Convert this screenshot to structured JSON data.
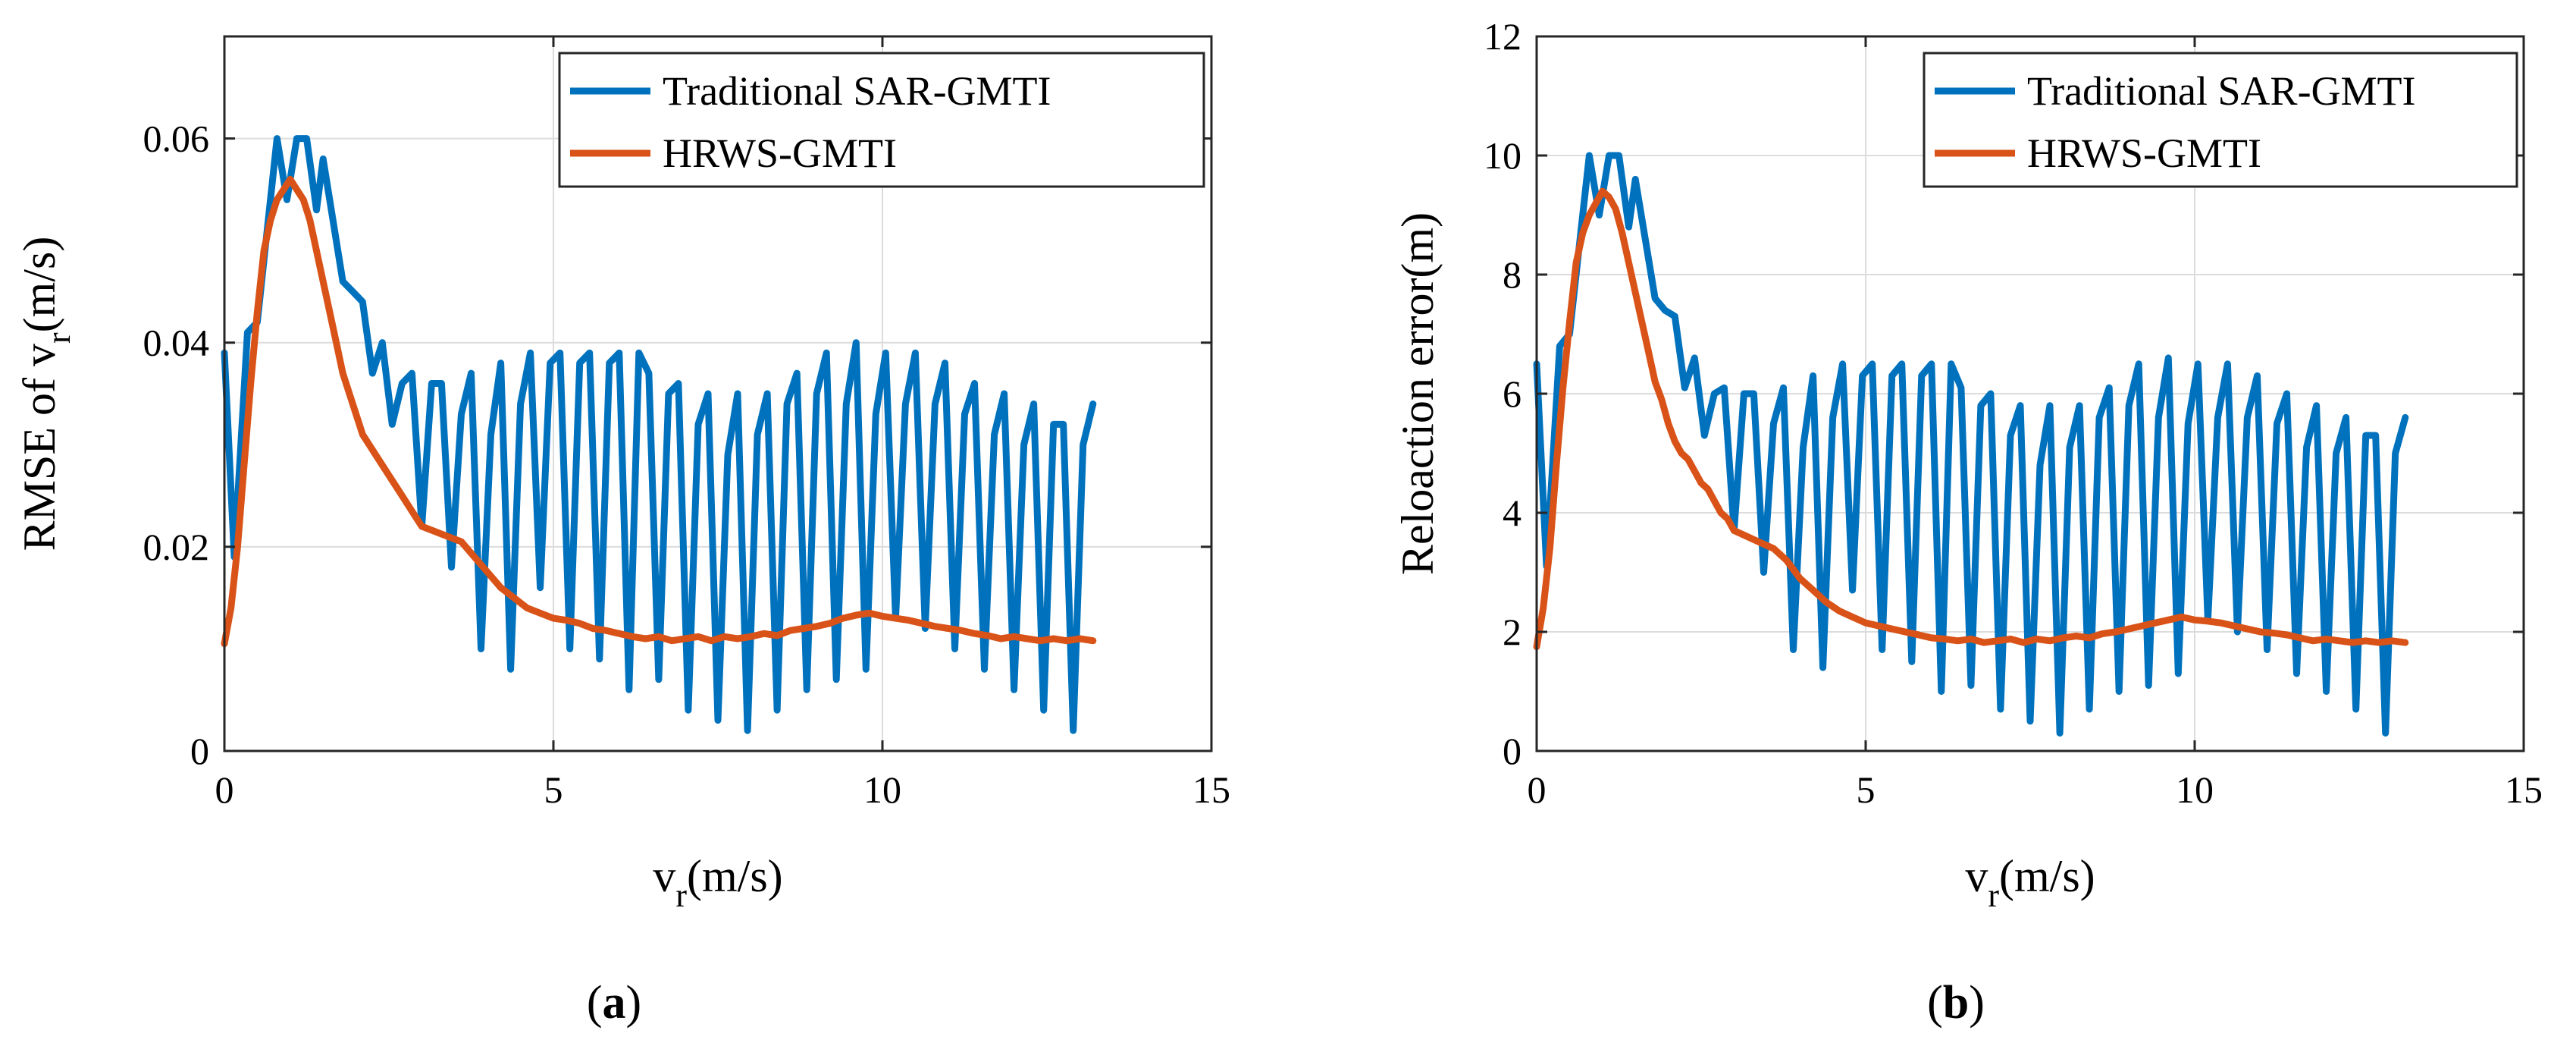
{
  "chart_data": [
    {
      "type": "line",
      "panel_label": "a",
      "ylabel_main": "RMSE of v",
      "ylabel_sub": "r",
      "ylabel_tail": "(m/s)",
      "xlabel_main": "v",
      "xlabel_sub": "r",
      "xlabel_tail": "(m/s)",
      "xlim": [
        0,
        15
      ],
      "ylim": [
        0,
        0.07
      ],
      "xticks": [
        0,
        5,
        10,
        15
      ],
      "xtick_labels": [
        "0",
        "5",
        "10",
        "15"
      ],
      "yticks": [
        0,
        0.02,
        0.04,
        0.06
      ],
      "ytick_labels": [
        "0",
        "0.02",
        "0.04",
        "0.06"
      ],
      "grid": true,
      "legend_position": "top-right",
      "series": [
        {
          "name": "Traditional SAR-GMTI",
          "color": "#0072BD",
          "x": [
            0,
            0.15,
            0.35,
            0.5,
            0.65,
            0.8,
            0.95,
            1.1,
            1.25,
            1.4,
            1.5,
            1.65,
            1.8,
            1.95,
            2.1,
            2.25,
            2.4,
            2.55,
            2.7,
            2.85,
            3.0,
            3.15,
            3.3,
            3.45,
            3.6,
            3.75,
            3.9,
            4.05,
            4.2,
            4.35,
            4.5,
            4.65,
            4.8,
            4.95,
            5.1,
            5.25,
            5.4,
            5.55,
            5.7,
            5.85,
            6.0,
            6.15,
            6.3,
            6.45,
            6.6,
            6.75,
            6.9,
            7.05,
            7.2,
            7.35,
            7.5,
            7.65,
            7.8,
            7.95,
            8.1,
            8.25,
            8.4,
            8.55,
            8.7,
            8.85,
            9.0,
            9.15,
            9.3,
            9.45,
            9.6,
            9.75,
            9.9,
            10.05,
            10.2,
            10.35,
            10.5,
            10.65,
            10.8,
            10.95,
            11.1,
            11.25,
            11.4,
            11.55,
            11.7,
            11.85,
            12.0,
            12.15,
            12.3,
            12.45,
            12.6,
            12.75,
            12.9,
            13.05,
            13.2
          ],
          "values": [
            0.039,
            0.019,
            0.041,
            0.042,
            0.051,
            0.06,
            0.054,
            0.06,
            0.06,
            0.053,
            0.058,
            0.052,
            0.046,
            0.045,
            0.044,
            0.037,
            0.04,
            0.032,
            0.036,
            0.037,
            0.022,
            0.036,
            0.036,
            0.018,
            0.033,
            0.037,
            0.01,
            0.031,
            0.038,
            0.008,
            0.034,
            0.039,
            0.016,
            0.038,
            0.039,
            0.01,
            0.038,
            0.039,
            0.009,
            0.038,
            0.039,
            0.006,
            0.039,
            0.037,
            0.007,
            0.035,
            0.036,
            0.004,
            0.032,
            0.035,
            0.003,
            0.029,
            0.035,
            0.002,
            0.031,
            0.035,
            0.004,
            0.034,
            0.037,
            0.006,
            0.035,
            0.039,
            0.007,
            0.034,
            0.04,
            0.008,
            0.033,
            0.039,
            0.013,
            0.034,
            0.039,
            0.012,
            0.034,
            0.038,
            0.01,
            0.033,
            0.036,
            0.008,
            0.031,
            0.035,
            0.006,
            0.03,
            0.034,
            0.004,
            0.032,
            0.032,
            0.002,
            0.03,
            0.034
          ]
        },
        {
          "name": "HRWS-GMTI",
          "color": "#D95319",
          "x": [
            0,
            0.1,
            0.2,
            0.3,
            0.4,
            0.5,
            0.6,
            0.7,
            0.8,
            0.9,
            1.0,
            1.1,
            1.2,
            1.3,
            1.4,
            1.5,
            1.6,
            1.7,
            1.8,
            1.9,
            2.0,
            2.1,
            2.2,
            2.3,
            2.4,
            2.5,
            2.6,
            2.7,
            2.8,
            2.9,
            3.0,
            3.2,
            3.4,
            3.6,
            3.8,
            4.0,
            4.2,
            4.4,
            4.6,
            4.8,
            5.0,
            5.2,
            5.4,
            5.6,
            5.8,
            6.0,
            6.2,
            6.4,
            6.6,
            6.8,
            7.0,
            7.2,
            7.4,
            7.6,
            7.8,
            8.0,
            8.2,
            8.4,
            8.6,
            8.8,
            9.0,
            9.2,
            9.4,
            9.6,
            9.8,
            10.0,
            10.2,
            10.4,
            10.6,
            10.8,
            11.0,
            11.2,
            11.4,
            11.6,
            11.8,
            12.0,
            12.2,
            12.4,
            12.6,
            12.8,
            13.0,
            13.2
          ],
          "values": [
            0.0105,
            0.014,
            0.02,
            0.028,
            0.036,
            0.043,
            0.049,
            0.052,
            0.054,
            0.055,
            0.056,
            0.055,
            0.054,
            0.052,
            0.049,
            0.046,
            0.043,
            0.04,
            0.037,
            0.035,
            0.033,
            0.031,
            0.03,
            0.029,
            0.028,
            0.027,
            0.026,
            0.025,
            0.024,
            0.023,
            0.022,
            0.0215,
            0.021,
            0.0205,
            0.019,
            0.0175,
            0.016,
            0.015,
            0.014,
            0.0135,
            0.013,
            0.0128,
            0.0125,
            0.012,
            0.0118,
            0.0115,
            0.0112,
            0.011,
            0.0112,
            0.0108,
            0.011,
            0.0112,
            0.0108,
            0.0112,
            0.011,
            0.0112,
            0.0115,
            0.0113,
            0.0118,
            0.012,
            0.0122,
            0.0125,
            0.013,
            0.0133,
            0.0135,
            0.0132,
            0.013,
            0.0128,
            0.0125,
            0.0122,
            0.012,
            0.0118,
            0.0115,
            0.0113,
            0.011,
            0.0112,
            0.011,
            0.0108,
            0.011,
            0.0108,
            0.011,
            0.0108
          ]
        }
      ]
    },
    {
      "type": "line",
      "panel_label": "b",
      "ylabel_main": "Reloaction error(m)",
      "xlabel_main": "v",
      "xlabel_sub": "r",
      "xlabel_tail": "(m/s)",
      "xlim": [
        0,
        15
      ],
      "ylim": [
        0,
        12
      ],
      "xticks": [
        0,
        5,
        10,
        15
      ],
      "xtick_labels": [
        "0",
        "5",
        "10",
        "15"
      ],
      "yticks": [
        0,
        2,
        4,
        6,
        8,
        10,
        12
      ],
      "ytick_labels": [
        "0",
        "2",
        "4",
        "6",
        "8",
        "10",
        "12"
      ],
      "grid": true,
      "legend_position": "top-right",
      "series": [
        {
          "name": "Traditional SAR-GMTI",
          "color": "#0072BD",
          "x": [
            0,
            0.15,
            0.35,
            0.5,
            0.65,
            0.8,
            0.95,
            1.1,
            1.25,
            1.4,
            1.5,
            1.65,
            1.8,
            1.95,
            2.1,
            2.25,
            2.4,
            2.55,
            2.7,
            2.85,
            3.0,
            3.15,
            3.3,
            3.45,
            3.6,
            3.75,
            3.9,
            4.05,
            4.2,
            4.35,
            4.5,
            4.65,
            4.8,
            4.95,
            5.1,
            5.25,
            5.4,
            5.55,
            5.7,
            5.85,
            6.0,
            6.15,
            6.3,
            6.45,
            6.6,
            6.75,
            6.9,
            7.05,
            7.2,
            7.35,
            7.5,
            7.65,
            7.8,
            7.95,
            8.1,
            8.25,
            8.4,
            8.55,
            8.7,
            8.85,
            9.0,
            9.15,
            9.3,
            9.45,
            9.6,
            9.75,
            9.9,
            10.05,
            10.2,
            10.35,
            10.5,
            10.65,
            10.8,
            10.95,
            11.1,
            11.25,
            11.4,
            11.55,
            11.7,
            11.85,
            12.0,
            12.15,
            12.3,
            12.45,
            12.6,
            12.75,
            12.9,
            13.05,
            13.2
          ],
          "values": [
            6.5,
            3.1,
            6.8,
            7.0,
            8.5,
            10.0,
            9.0,
            10.0,
            10.0,
            8.8,
            9.6,
            8.6,
            7.6,
            7.4,
            7.3,
            6.1,
            6.6,
            5.3,
            6.0,
            6.1,
            3.7,
            6.0,
            6.0,
            3.0,
            5.5,
            6.1,
            1.7,
            5.1,
            6.3,
            1.4,
            5.6,
            6.5,
            2.7,
            6.3,
            6.5,
            1.7,
            6.3,
            6.5,
            1.5,
            6.3,
            6.5,
            1.0,
            6.5,
            6.1,
            1.1,
            5.8,
            6.0,
            0.7,
            5.3,
            5.8,
            0.5,
            4.8,
            5.8,
            0.3,
            5.1,
            5.8,
            0.7,
            5.6,
            6.1,
            1.0,
            5.8,
            6.5,
            1.1,
            5.6,
            6.6,
            1.3,
            5.5,
            6.5,
            2.2,
            5.6,
            6.5,
            2.0,
            5.6,
            6.3,
            1.7,
            5.5,
            6.0,
            1.3,
            5.1,
            5.8,
            1.0,
            5.0,
            5.6,
            0.7,
            5.3,
            5.3,
            0.3,
            5.0,
            5.6
          ]
        },
        {
          "name": "HRWS-GMTI",
          "color": "#D95319",
          "x": [
            0,
            0.1,
            0.2,
            0.3,
            0.4,
            0.5,
            0.6,
            0.7,
            0.8,
            0.9,
            1.0,
            1.1,
            1.2,
            1.3,
            1.4,
            1.5,
            1.6,
            1.7,
            1.8,
            1.9,
            2.0,
            2.1,
            2.2,
            2.3,
            2.4,
            2.5,
            2.6,
            2.7,
            2.8,
            2.9,
            3.0,
            3.2,
            3.4,
            3.6,
            3.8,
            4.0,
            4.2,
            4.4,
            4.6,
            4.8,
            5.0,
            5.2,
            5.4,
            5.6,
            5.8,
            6.0,
            6.2,
            6.4,
            6.6,
            6.8,
            7.0,
            7.2,
            7.4,
            7.6,
            7.8,
            8.0,
            8.2,
            8.4,
            8.6,
            8.8,
            9.0,
            9.2,
            9.4,
            9.6,
            9.8,
            10.0,
            10.2,
            10.4,
            10.6,
            10.8,
            11.0,
            11.2,
            11.4,
            11.6,
            11.8,
            12.0,
            12.2,
            12.4,
            12.6,
            12.8,
            13.0,
            13.2
          ],
          "values": [
            1.75,
            2.4,
            3.4,
            4.8,
            6.1,
            7.2,
            8.2,
            8.7,
            9.0,
            9.2,
            9.4,
            9.3,
            9.1,
            8.7,
            8.2,
            7.7,
            7.2,
            6.7,
            6.2,
            5.9,
            5.5,
            5.2,
            5.0,
            4.9,
            4.7,
            4.5,
            4.4,
            4.2,
            4.0,
            3.9,
            3.7,
            3.6,
            3.5,
            3.4,
            3.2,
            2.9,
            2.7,
            2.5,
            2.35,
            2.25,
            2.15,
            2.1,
            2.05,
            2.0,
            1.95,
            1.9,
            1.88,
            1.85,
            1.88,
            1.82,
            1.85,
            1.88,
            1.82,
            1.88,
            1.85,
            1.9,
            1.93,
            1.9,
            1.97,
            2.0,
            2.05,
            2.1,
            2.15,
            2.2,
            2.25,
            2.2,
            2.18,
            2.15,
            2.1,
            2.05,
            2.0,
            1.98,
            1.95,
            1.9,
            1.85,
            1.88,
            1.85,
            1.82,
            1.85,
            1.82,
            1.85,
            1.82
          ]
        }
      ]
    }
  ]
}
